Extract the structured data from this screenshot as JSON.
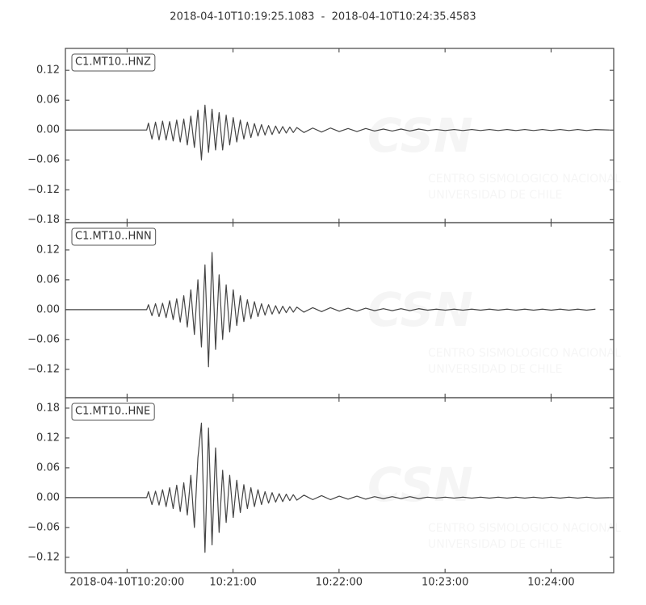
{
  "chart_data": {
    "type": "line",
    "title": "2018-04-10T10:19:25.1083  -  2018-04-10T10:24:35.4583",
    "x": [
      0,
      10,
      20,
      30,
      40,
      46,
      47,
      49,
      51,
      53,
      55,
      57,
      59,
      61,
      63,
      65,
      67,
      69,
      71,
      73,
      75,
      77,
      79,
      81,
      83,
      85,
      87,
      89,
      91,
      93,
      95,
      97,
      99,
      101,
      103,
      105,
      107,
      109,
      111,
      113,
      115,
      117,
      119,
      121,
      123,
      125,
      127,
      129,
      131,
      135,
      140,
      145,
      150,
      155,
      160,
      165,
      170,
      175,
      180,
      185,
      190,
      195,
      200,
      205,
      210,
      215,
      220,
      225,
      230,
      235,
      240,
      245,
      250,
      255,
      260,
      265,
      270,
      275,
      280,
      285,
      290,
      295,
      300,
      308
    ],
    "xlim": [
      0,
      310.35
    ],
    "xticks": [
      {
        "value": 34.8917,
        "label": "2018-04-10T10:20:00"
      },
      {
        "value": 94.8917,
        "label": "10:21:00"
      },
      {
        "value": 154.8917,
        "label": "10:22:00"
      },
      {
        "value": 214.8917,
        "label": "10:23:00"
      },
      {
        "value": 274.8917,
        "label": "10:24:00"
      }
    ],
    "series": [
      {
        "name": "C1.MT10..HNZ",
        "color": "#444444",
        "ylim": [
          -0.186,
          0.164
        ],
        "yticks": [
          {
            "value": -0.18,
            "label": "−0.18"
          },
          {
            "value": -0.12,
            "label": "−0.12"
          },
          {
            "value": -0.06,
            "label": "−0.06"
          },
          {
            "value": 0,
            "label": "0.00"
          },
          0.06,
          0.12
        ],
        "values": [
          0,
          0,
          0,
          0,
          0,
          0,
          0.014,
          -0.018,
          0.016,
          -0.02,
          0.018,
          -0.02,
          0.017,
          -0.022,
          0.02,
          -0.024,
          0.022,
          -0.03,
          0.028,
          -0.035,
          0.04,
          -0.06,
          0.05,
          -0.045,
          0.042,
          -0.04,
          0.035,
          -0.04,
          0.03,
          -0.03,
          0.025,
          -0.024,
          0.02,
          -0.018,
          0.016,
          -0.015,
          0.013,
          -0.012,
          0.011,
          -0.01,
          0.009,
          -0.009,
          0.008,
          -0.007,
          0.007,
          -0.006,
          0.006,
          -0.005,
          0.005,
          -0.005,
          0.004,
          -0.004,
          0.004,
          -0.003,
          0.003,
          -0.003,
          0.003,
          -0.002,
          0.002,
          -0.002,
          0.002,
          -0.002,
          0.002,
          -0.001,
          0.001,
          -0.001,
          0.001,
          -0.001,
          0.001,
          -0.001,
          0.001,
          -0.001,
          0.001,
          -0.001,
          0.001,
          -0.001,
          0.001,
          -0.001,
          0.001,
          -0.001,
          0.001,
          -0.001,
          0.001,
          0
        ]
      },
      {
        "name": "C1.MT10..HNN",
        "color": "#444444",
        "ylim": [
          -0.177,
          0.175
        ],
        "yticks": [
          {
            "value": -0.12,
            "label": "−0.12"
          },
          {
            "value": -0.06,
            "label": "−0.06"
          },
          {
            "value": 0,
            "label": "0.00"
          },
          0.06,
          0.12
        ],
        "values": [
          0,
          0,
          0,
          0,
          0,
          0,
          0.01,
          -0.012,
          0.012,
          -0.014,
          0.013,
          -0.016,
          0.018,
          -0.02,
          0.022,
          -0.025,
          0.028,
          -0.035,
          0.04,
          -0.05,
          0.06,
          -0.075,
          0.09,
          -0.115,
          0.115,
          -0.08,
          0.07,
          -0.06,
          0.05,
          -0.045,
          0.04,
          -0.032,
          0.028,
          -0.024,
          0.02,
          -0.018,
          0.016,
          -0.014,
          0.012,
          -0.011,
          0.01,
          -0.009,
          0.008,
          -0.008,
          0.007,
          -0.006,
          0.006,
          -0.005,
          0.005,
          -0.005,
          0.004,
          -0.004,
          0.004,
          -0.003,
          0.003,
          -0.003,
          0.003,
          -0.002,
          0.002,
          -0.002,
          0.002,
          -0.002,
          0.002,
          -0.001,
          0.001,
          -0.001,
          0.001,
          -0.001,
          0.001,
          -0.001,
          0.001,
          -0.001,
          0.001,
          -0.001,
          0.001,
          -0.001,
          0.001,
          -0.001,
          0.001,
          -0.001,
          0.001,
          -0.001,
          0.001,
          null
        ]
      },
      {
        "name": "C1.MT10..HNE",
        "color": "#444444",
        "ylim": [
          -0.151,
          0.201
        ],
        "yticks": [
          {
            "value": -0.12,
            "label": "−0.12"
          },
          {
            "value": -0.06,
            "label": "−0.06"
          },
          {
            "value": 0,
            "label": "0.00"
          },
          0.06,
          0.12,
          0.18
        ],
        "values": [
          0,
          0,
          0,
          0,
          0,
          0,
          0.012,
          -0.014,
          0.013,
          -0.015,
          0.016,
          -0.018,
          0.02,
          -0.022,
          0.025,
          -0.028,
          0.03,
          -0.035,
          0.045,
          -0.06,
          0.08,
          0.15,
          -0.11,
          0.14,
          -0.095,
          0.1,
          -0.07,
          0.055,
          -0.05,
          0.045,
          -0.04,
          0.035,
          -0.03,
          0.026,
          -0.022,
          0.02,
          -0.018,
          0.016,
          -0.014,
          0.012,
          -0.011,
          0.01,
          -0.009,
          0.008,
          -0.008,
          0.007,
          -0.006,
          0.006,
          -0.005,
          0.005,
          -0.004,
          0.004,
          -0.004,
          0.003,
          -0.003,
          0.003,
          -0.003,
          0.002,
          -0.002,
          0.002,
          -0.002,
          0.002,
          -0.002,
          0.001,
          -0.001,
          0.001,
          -0.001,
          0.001,
          -0.001,
          0.001,
          -0.001,
          0.001,
          -0.001,
          0.001,
          -0.001,
          0.001,
          -0.001,
          0.001,
          -0.001,
          0.001,
          -0.001,
          0.001,
          -0.001,
          0
        ]
      }
    ],
    "watermark": {
      "logo": "CSN",
      "line1": "CENTRO SISMOLOGICO NACIONAL",
      "line2": "UNIVERSIDAD DE CHILE"
    }
  }
}
